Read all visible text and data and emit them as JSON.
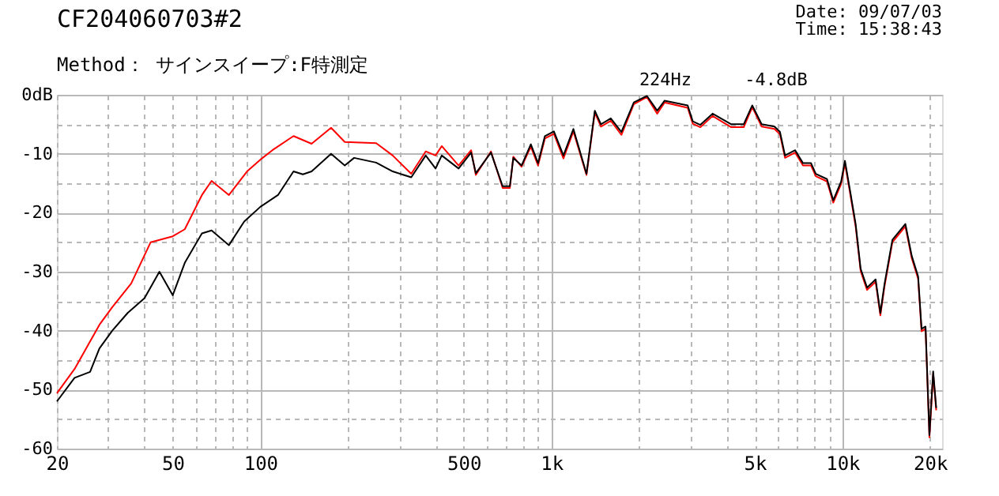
{
  "chart_data": {
    "type": "line",
    "title": "CF204060703#2",
    "subtitle": "Method： サインスイープ:F特測定",
    "annotations": [
      "Date: 09/07/03",
      "Time: 15:38:43",
      "224Hz",
      "-4.8dB"
    ],
    "log": "x",
    "grid": true,
    "marker": "none",
    "line_style": "solid",
    "xlim": [
      20,
      22000
    ],
    "ylim": [
      -60,
      0
    ],
    "xticks": [
      20,
      {
        "value": 30,
        "label": null
      },
      {
        "value": 40,
        "label": null
      },
      50,
      {
        "value": 60,
        "label": null
      },
      {
        "value": 70,
        "label": null
      },
      {
        "value": 80,
        "label": null
      },
      {
        "value": 90,
        "label": null
      },
      100,
      {
        "value": 200,
        "label": null
      },
      {
        "value": 300,
        "label": null
      },
      {
        "value": 400,
        "label": null
      },
      500,
      {
        "value": 600,
        "label": null
      },
      {
        "value": 700,
        "label": null
      },
      {
        "value": 800,
        "label": null
      },
      {
        "value": 900,
        "label": null
      },
      {
        "value": 1000,
        "label": "1k"
      },
      {
        "value": 2000,
        "label": null
      },
      {
        "value": 3000,
        "label": null
      },
      {
        "value": 4000,
        "label": null
      },
      {
        "value": 5000,
        "label": "5k"
      },
      {
        "value": 6000,
        "label": null
      },
      {
        "value": 7000,
        "label": null
      },
      {
        "value": 8000,
        "label": null
      },
      {
        "value": 9000,
        "label": null
      },
      {
        "value": 10000,
        "label": "10k"
      },
      {
        "value": 20000,
        "label": "20k"
      }
    ],
    "yticks": [
      {
        "value": 0,
        "label": "0dB"
      },
      {
        "value": -5,
        "label": null
      },
      -10,
      {
        "value": -15,
        "label": null
      },
      -20,
      {
        "value": -25,
        "label": null
      },
      -30,
      {
        "value": -35,
        "label": null
      },
      -40,
      {
        "value": -45,
        "label": null
      },
      -50,
      {
        "value": -55,
        "label": null
      },
      -60
    ],
    "series": [
      {
        "color": "#ff0000",
        "x": [
          20,
          23,
          28,
          31,
          36,
          42,
          50,
          55,
          63,
          68,
          78,
          90,
          100,
          110,
          130,
          150,
          175,
          195,
          250,
          285,
          330,
          370,
          400,
          420,
          480,
          530,
          550,
          620,
          680,
          720,
          740,
          790,
          850,
          900,
          950,
          1020,
          1100,
          1190,
          1320,
          1410,
          1480,
          1600,
          1740,
          1920,
          2130,
          2310,
          2450,
          2940,
          3060,
          3250,
          3580,
          4150,
          4580,
          4900,
          5280,
          5840,
          6100,
          6350,
          6880,
          7320,
          7800,
          8100,
          8850,
          9300,
          9900,
          10200,
          10650,
          11100,
          11550,
          12150,
          13000,
          13500,
          13950,
          14850,
          16450,
          17300,
          18200,
          18700,
          19300,
          19900,
          20500,
          21000
        ],
        "values": [
          -50.6,
          -46.5,
          -39,
          -36,
          -32,
          -25,
          -24,
          -22.8,
          -17,
          -14.6,
          -17,
          -13,
          -11,
          -9.4,
          -7,
          -8.3,
          -5.6,
          -8,
          -8.2,
          -10.3,
          -13.4,
          -9.6,
          -10.3,
          -8.7,
          -12,
          -9.4,
          -13.6,
          -9.6,
          -15.8,
          -15.8,
          -10.5,
          -12.2,
          -8.8,
          -12,
          -7.4,
          -6.6,
          -10.8,
          -6.2,
          -13.6,
          -3,
          -5.4,
          -4.4,
          -6.8,
          -1.6,
          -0.4,
          -3.2,
          -1.3,
          -2.2,
          -4.9,
          -5.5,
          -3.6,
          -5.5,
          -5.5,
          -2.1,
          -5.4,
          -5.8,
          -6.7,
          -10.7,
          -9.8,
          -12,
          -12,
          -13.8,
          -14.7,
          -18.3,
          -15.1,
          -11.6,
          -17,
          -22.3,
          -29.9,
          -33.1,
          -31.7,
          -37.4,
          -32.5,
          -25,
          -22.3,
          -27.7,
          -31.2,
          -40.1,
          -39.7,
          -58.1,
          -47.3,
          -53.5
        ]
      },
      {
        "color": "#000000",
        "x": [
          20,
          23,
          26,
          28,
          31,
          35,
          40,
          45,
          50,
          55,
          63,
          68,
          78,
          88,
          100,
          115,
          130,
          140,
          150,
          175,
          195,
          210,
          250,
          285,
          330,
          370,
          400,
          420,
          480,
          530,
          550,
          620,
          680,
          720,
          740,
          790,
          850,
          900,
          950,
          1020,
          1100,
          1190,
          1320,
          1410,
          1480,
          1600,
          1740,
          1920,
          2130,
          2310,
          2450,
          2940,
          3060,
          3250,
          3580,
          4150,
          4580,
          4900,
          5280,
          5840,
          6100,
          6350,
          6880,
          7320,
          7800,
          8100,
          8850,
          9300,
          9900,
          10200,
          10650,
          11100,
          11550,
          12150,
          13000,
          13500,
          13950,
          14850,
          16450,
          17300,
          18200,
          18700,
          19300,
          19900,
          20500,
          21000
        ],
        "values": [
          -52,
          -48,
          -47,
          -43,
          -40,
          -37,
          -34.5,
          -30,
          -34,
          -28.5,
          -23.5,
          -23,
          -25.5,
          -21.5,
          -19,
          -17,
          -13,
          -13.5,
          -13,
          -10,
          -12,
          -10.7,
          -11.5,
          -13,
          -14,
          -10.3,
          -12.5,
          -10.3,
          -12.5,
          -9.8,
          -13.3,
          -9.8,
          -15.5,
          -15.5,
          -10.7,
          -12,
          -8.4,
          -11.6,
          -7,
          -6.2,
          -10.3,
          -5.8,
          -13.4,
          -2.7,
          -5,
          -4,
          -6.3,
          -1.3,
          -0.2,
          -2.7,
          -1,
          -1.8,
          -4.5,
          -5.1,
          -3.2,
          -5,
          -5,
          -1.8,
          -5,
          -5.4,
          -6.3,
          -10.3,
          -9.4,
          -11.6,
          -11.6,
          -13.4,
          -14.3,
          -17.9,
          -14.7,
          -11.2,
          -16.6,
          -21.9,
          -29.5,
          -32.7,
          -31.3,
          -37,
          -32.1,
          -24.6,
          -21.9,
          -27.3,
          -30.8,
          -39.7,
          -39.3,
          -57.7,
          -46.9,
          -53.1
        ]
      }
    ]
  }
}
